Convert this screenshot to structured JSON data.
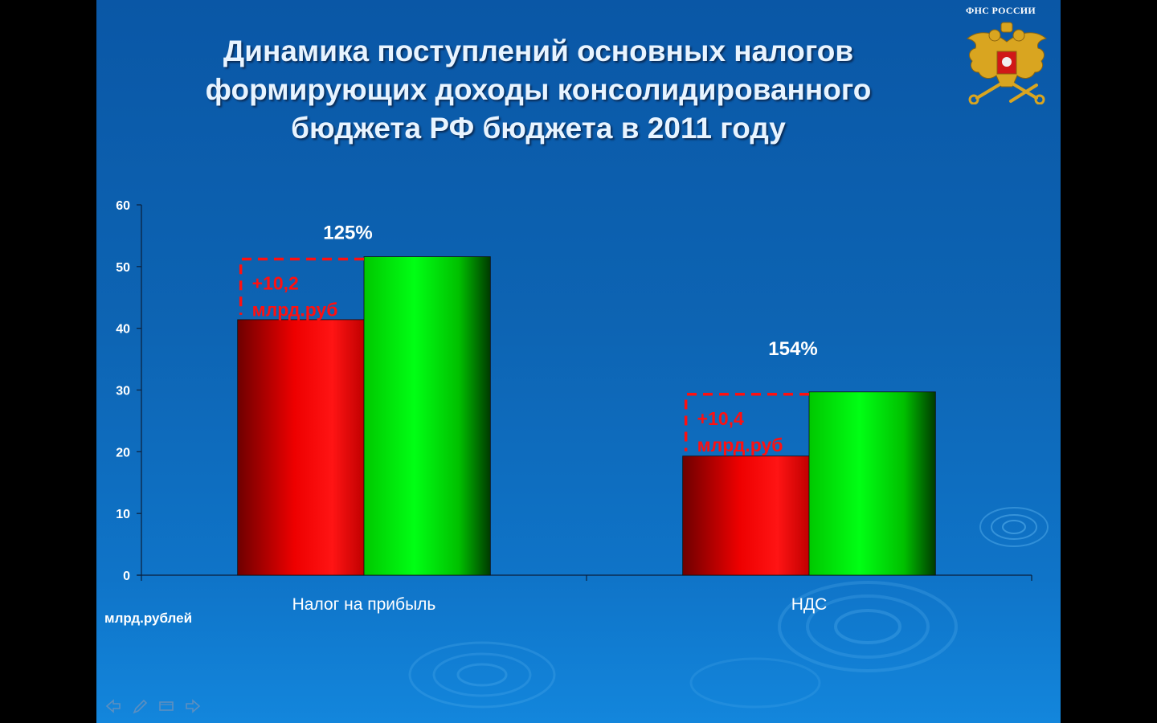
{
  "slide": {
    "title": "Динамика поступлений основных налогов формирующих доходы консолидированного бюджета РФ бюджета в 2011 году",
    "logo_label": "ФНС РОССИИ",
    "emblem_icon": "double-headed-eagle-emblem-icon",
    "unit_label": "млрд.рублей",
    "background_color": "#0d64b3"
  },
  "chart_data": {
    "type": "bar",
    "categories": [
      "Налог на прибыль",
      "НДС"
    ],
    "series": [
      {
        "color": "#e00000",
        "values": [
          41.4,
          19.3
        ]
      },
      {
        "color": "#00e000",
        "values": [
          51.6,
          29.7
        ]
      }
    ],
    "ylim": [
      0,
      60
    ],
    "yticks": [
      "0",
      "10",
      "20",
      "30",
      "40",
      "50",
      "60"
    ],
    "growth_labels": [
      "125%",
      "154%"
    ],
    "increase_labels": [
      {
        "line1": "+10,2",
        "line2": "млрд.руб"
      },
      {
        "line1": "+10,4",
        "line2": "млрд.руб"
      }
    ],
    "increase_color": "#ff1010",
    "grid": false,
    "legend": "none"
  },
  "nav": {
    "icons": [
      "arrow-left-icon",
      "pen-icon",
      "screen-icon",
      "arrow-right-icon"
    ]
  }
}
